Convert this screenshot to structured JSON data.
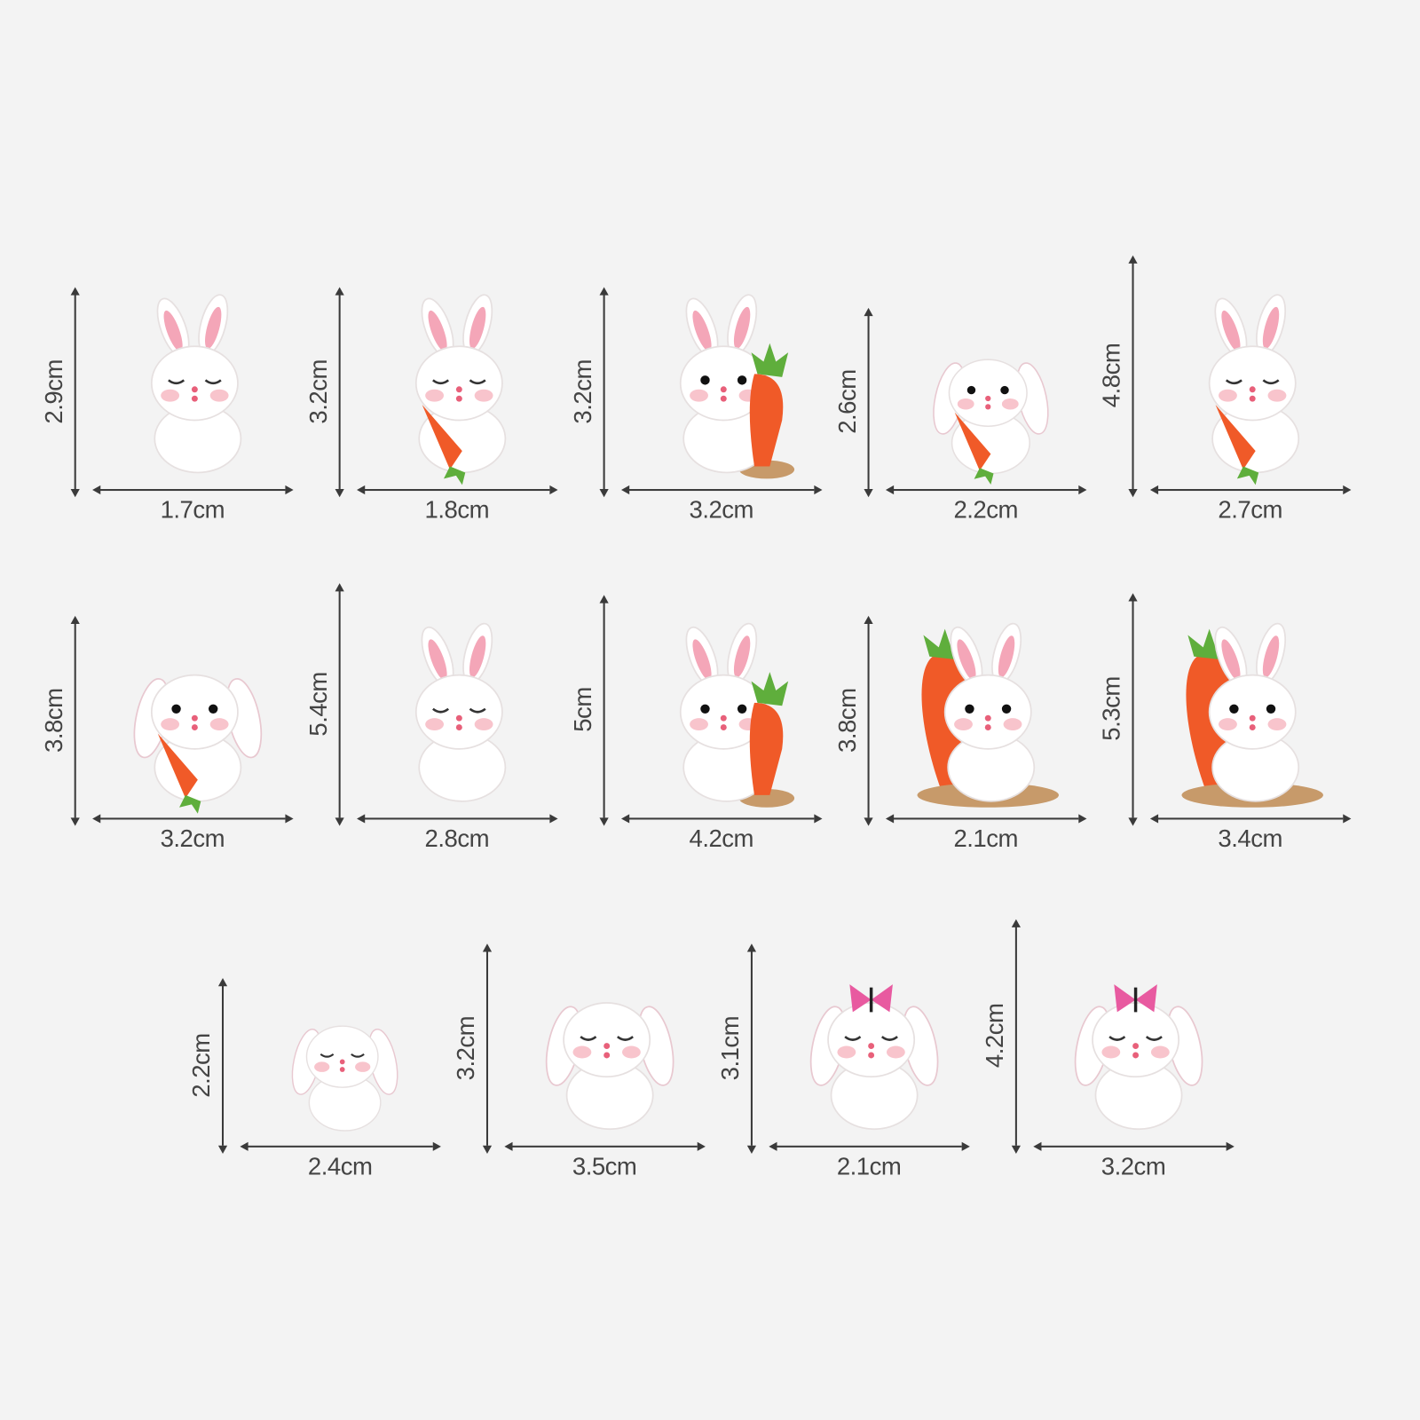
{
  "rows": [
    {
      "items": [
        {
          "height": "2.9cm",
          "width": "1.7cm",
          "ears": "upright",
          "carrot": false,
          "butterfly": false,
          "eyes": "closed"
        },
        {
          "height": "3.2cm",
          "width": "1.8cm",
          "ears": "upright",
          "carrot": "held",
          "butterfly": false,
          "eyes": "closed"
        },
        {
          "height": "3.2cm",
          "width": "3.2cm",
          "ears": "upright",
          "carrot": "standing",
          "butterfly": false,
          "eyes": "open"
        },
        {
          "height": "2.6cm",
          "width": "2.2cm",
          "ears": "floppy",
          "carrot": "held",
          "butterfly": false,
          "eyes": "open"
        },
        {
          "height": "4.8cm",
          "width": "2.7cm",
          "ears": "upright",
          "carrot": "held",
          "butterfly": false,
          "eyes": "closed"
        }
      ]
    },
    {
      "items": [
        {
          "height": "3.8cm",
          "width": "3.2cm",
          "ears": "floppy",
          "carrot": "held",
          "butterfly": false,
          "eyes": "open"
        },
        {
          "height": "5.4cm",
          "width": "2.8cm",
          "ears": "upright",
          "carrot": false,
          "butterfly": false,
          "eyes": "closed"
        },
        {
          "height": "5cm",
          "width": "4.2cm",
          "ears": "upright",
          "carrot": "standing",
          "butterfly": false,
          "eyes": "open"
        },
        {
          "height": "3.8cm",
          "width": "2.1cm",
          "ears": "upright",
          "carrot": "big",
          "butterfly": false,
          "eyes": "open"
        },
        {
          "height": "5.3cm",
          "width": "3.4cm",
          "ears": "upright",
          "carrot": "big",
          "butterfly": false,
          "eyes": "open"
        }
      ]
    },
    {
      "items": [
        {
          "height": "2.2cm",
          "width": "2.4cm",
          "ears": "floppy",
          "carrot": false,
          "butterfly": false,
          "eyes": "closed"
        },
        {
          "height": "3.2cm",
          "width": "3.5cm",
          "ears": "floppy",
          "carrot": false,
          "butterfly": false,
          "eyes": "closed"
        },
        {
          "height": "3.1cm",
          "width": "2.1cm",
          "ears": "floppy",
          "carrot": false,
          "butterfly": true,
          "eyes": "closed"
        },
        {
          "height": "4.2cm",
          "width": "3.2cm",
          "ears": "floppy",
          "carrot": false,
          "butterfly": true,
          "eyes": "closed"
        }
      ]
    }
  ],
  "colors": {
    "background": "#f3f3f3",
    "arrow": "#3a3a3a",
    "text": "#444444",
    "carrot": "#f05a28",
    "leaf": "#5fae3c",
    "ear_inner": "#f4a6b8",
    "butterfly": "#e85aa0",
    "base": "#c79a6a"
  }
}
